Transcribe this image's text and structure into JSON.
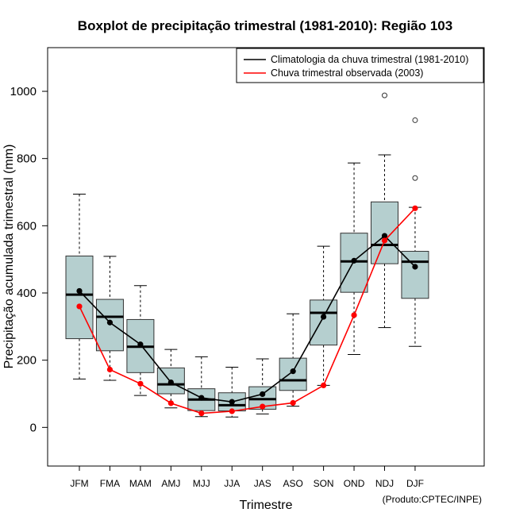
{
  "chart_data": {
    "type": "boxplot",
    "title": "Boxplot de precipitação trimestral (1981-2010): Região 103",
    "xlabel": "Trimestre",
    "ylabel": "Precipitação acumulada trimestral (mm)",
    "credit": "(Produto:CPTEC/INPE)",
    "ylim": [
      -115,
      1130
    ],
    "yticks": [
      0,
      200,
      400,
      600,
      800,
      1000
    ],
    "ytick_labels": [
      "0",
      "200",
      "400",
      "600",
      "800",
      "1000"
    ],
    "categories": [
      "JFM",
      "FMA",
      "MAM",
      "AMJ",
      "MJJ",
      "JJA",
      "JAS",
      "ASO",
      "SON",
      "OND",
      "NDJ",
      "DJF"
    ],
    "boxes": [
      {
        "whisker_low": 144,
        "q1": 264,
        "median": 395,
        "q3": 510,
        "whisker_high": 694,
        "outliers": []
      },
      {
        "whisker_low": 140,
        "q1": 228,
        "median": 329,
        "q3": 381,
        "whisker_high": 509,
        "outliers": []
      },
      {
        "whisker_low": 95,
        "q1": 163,
        "median": 240,
        "q3": 321,
        "whisker_high": 422,
        "outliers": []
      },
      {
        "whisker_low": 58,
        "q1": 100,
        "median": 128,
        "q3": 177,
        "whisker_high": 232,
        "outliers": []
      },
      {
        "whisker_low": 32,
        "q1": 50,
        "median": 83,
        "q3": 115,
        "whisker_high": 210,
        "outliers": []
      },
      {
        "whisker_low": 31,
        "q1": 49,
        "median": 66,
        "q3": 103,
        "whisker_high": 179,
        "outliers": []
      },
      {
        "whisker_low": 40,
        "q1": 54,
        "median": 84,
        "q3": 121,
        "whisker_high": 204,
        "outliers": []
      },
      {
        "whisker_low": 63,
        "q1": 110,
        "median": 140,
        "q3": 206,
        "whisker_high": 338,
        "outliers": []
      },
      {
        "whisker_low": 125,
        "q1": 245,
        "median": 341,
        "q3": 379,
        "whisker_high": 539,
        "outliers": []
      },
      {
        "whisker_low": 217,
        "q1": 402,
        "median": 494,
        "q3": 578,
        "whisker_high": 787,
        "outliers": []
      },
      {
        "whisker_low": 297,
        "q1": 487,
        "median": 543,
        "q3": 671,
        "whisker_high": 811,
        "outliers": [
          988
        ]
      },
      {
        "whisker_low": 241,
        "q1": 384,
        "median": 493,
        "q3": 524,
        "whisker_high": 655,
        "outliers": [
          742,
          914
        ]
      }
    ],
    "series": [
      {
        "name": "Climatologia da chuva trimestral (1981-2010)",
        "color": "#000000",
        "values": [
          406,
          312,
          247,
          134,
          88,
          76,
          99,
          167,
          329,
          496,
          570,
          478
        ]
      },
      {
        "name": "Chuva trimestral observada (2003)",
        "color": "#ff0000",
        "values": [
          360,
          172,
          130,
          72,
          42,
          48,
          62,
          73,
          125,
          334,
          556,
          652
        ]
      }
    ],
    "box_fill": "#b5cfcf",
    "legend_position": "top-right"
  }
}
